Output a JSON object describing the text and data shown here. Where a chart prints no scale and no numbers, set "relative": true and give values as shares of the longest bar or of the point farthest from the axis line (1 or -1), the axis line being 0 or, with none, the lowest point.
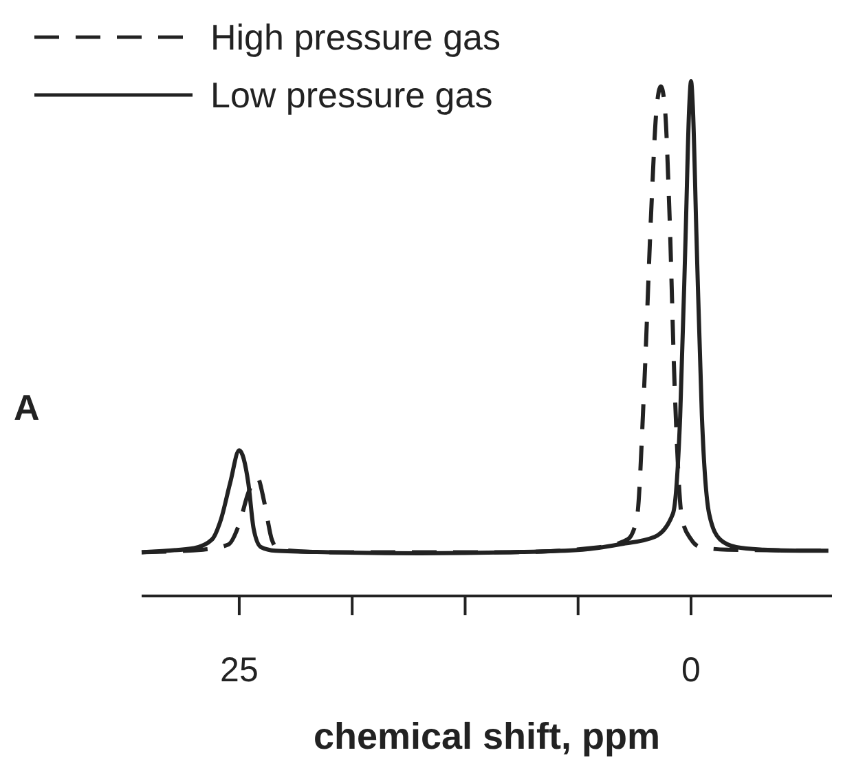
{
  "chart_data": {
    "type": "line",
    "relative": true,
    "xlabel": "chemical shift, ppm",
    "annotations": [
      "A"
    ],
    "xlim": [
      30.4,
      -7.8
    ],
    "xticks": [
      25,
      {
        "value": 18.75,
        "label": null
      },
      {
        "value": 12.5,
        "label": null
      },
      {
        "value": 6.25,
        "label": null
      },
      0
    ],
    "legend": "top left",
    "grid": false,
    "marker": "none",
    "series": [
      {
        "name": "High pressure gas",
        "color": "#222222",
        "line_style": "dashed",
        "x": [
          30.4,
          27,
          25.6,
          25,
          24.5,
          24,
          23.6,
          23.2,
          22.8,
          20,
          10,
          5,
          3.5,
          3,
          2.6,
          2.2,
          1.9,
          1.67,
          1.45,
          1.2,
          0.9,
          0.5,
          0,
          -0.5,
          -2,
          -7.6
        ],
        "values": [
          0.085,
          0.09,
          0.1,
          0.14,
          0.2,
          0.23,
          0.18,
          0.11,
          0.09,
          0.085,
          0.085,
          0.095,
          0.11,
          0.15,
          0.4,
          0.75,
          0.95,
          0.99,
          0.95,
          0.75,
          0.4,
          0.15,
          0.11,
          0.095,
          0.09,
          0.088
        ]
      },
      {
        "name": "Low pressure gas",
        "color": "#222222",
        "line_style": "solid",
        "x": [
          30.4,
          29,
          27.5,
          26.5,
          26,
          25.5,
          25,
          24.5,
          24.2,
          23.8,
          23,
          20,
          15,
          10,
          6,
          4,
          2,
          1,
          0.6,
          0.3,
          0.1,
          0,
          -0.1,
          -0.3,
          -0.6,
          -1,
          -1.6,
          -2.5,
          -4,
          -6,
          -7.6
        ],
        "values": [
          0.085,
          0.088,
          0.093,
          0.11,
          0.15,
          0.22,
          0.283,
          0.22,
          0.13,
          0.095,
          0.088,
          0.085,
          0.083,
          0.085,
          0.09,
          0.1,
          0.115,
          0.16,
          0.35,
          0.7,
          0.95,
          1,
          0.95,
          0.7,
          0.35,
          0.16,
          0.11,
          0.095,
          0.09,
          0.088,
          0.088
        ]
      }
    ]
  }
}
